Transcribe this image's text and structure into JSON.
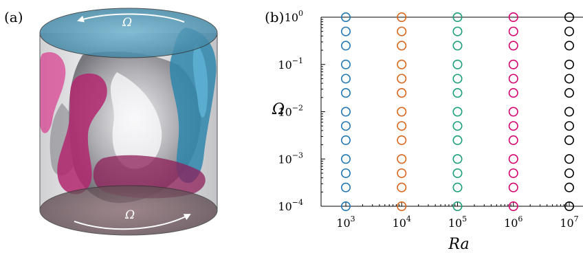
{
  "panel_a": {
    "label": "(a)",
    "omega_top": "Ω",
    "omega_bottom": "Ω"
  },
  "panel_b": {
    "label": "(b)"
  },
  "chart_data": {
    "type": "scatter",
    "xscale": "log",
    "yscale": "log",
    "xlabel": "Ra",
    "ylabel": "Ω",
    "xlim": [
      1000,
      10000000
    ],
    "ylim": [
      0.0001,
      1
    ],
    "xticks": [
      1000,
      10000,
      100000,
      1000000,
      10000000
    ],
    "xticklabels": [
      [
        "10",
        "3"
      ],
      [
        "10",
        "4"
      ],
      [
        "10",
        "5"
      ],
      [
        "10",
        "6"
      ],
      [
        "10",
        "7"
      ]
    ],
    "yticks": [
      1,
      0.1,
      0.01,
      0.001,
      0.0001
    ],
    "yticklabels": [
      [
        "10",
        "0"
      ],
      [
        "10",
        "−1"
      ],
      [
        "10",
        "−2"
      ],
      [
        "10",
        "−3"
      ],
      [
        "10",
        "−4"
      ]
    ],
    "marker": "open-circle",
    "series": [
      {
        "x": 1000,
        "color": "#1f77b4",
        "y": [
          1,
          0.5,
          0.25,
          0.1,
          0.05,
          0.025,
          0.01,
          0.005,
          0.0025,
          0.001,
          0.0005,
          0.00025,
          0.0001
        ]
      },
      {
        "x": 10000,
        "color": "#d9651a",
        "y": [
          1,
          0.5,
          0.25,
          0.1,
          0.05,
          0.025,
          0.01,
          0.005,
          0.0025,
          0.001,
          0.0005,
          0.00025,
          0.0001
        ]
      },
      {
        "x": 100000,
        "color": "#1a9e77",
        "y": [
          1,
          0.5,
          0.25,
          0.1,
          0.05,
          0.025,
          0.01,
          0.005,
          0.0025,
          0.001,
          0.0005,
          0.00025,
          0.0001
        ]
      },
      {
        "x": 1000000,
        "color": "#d6006e",
        "y": [
          1,
          0.5,
          0.25,
          0.1,
          0.05,
          0.025,
          0.01,
          0.005,
          0.0025,
          0.001,
          0.0005,
          0.00025,
          0.0001
        ]
      },
      {
        "x": 10000000,
        "color": "#000000",
        "y": [
          1,
          0.5,
          0.25,
          0.1,
          0.05,
          0.025,
          0.01,
          0.005,
          0.0025,
          0.001,
          0.0005,
          0.00025,
          0.0001
        ]
      }
    ],
    "grid": false
  }
}
